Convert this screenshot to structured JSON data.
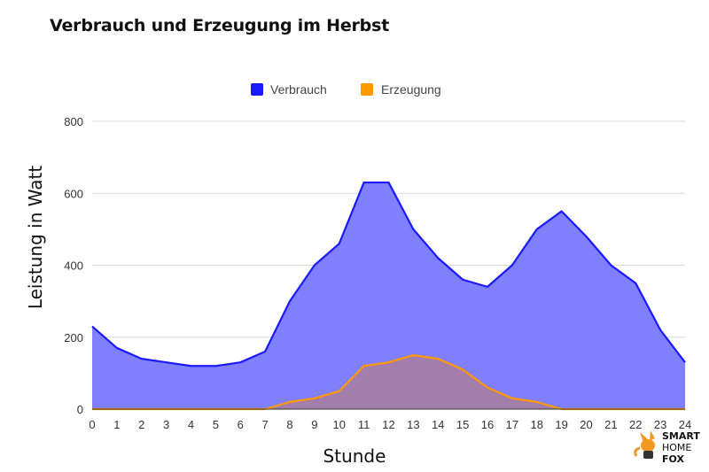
{
  "chart_data": {
    "type": "area",
    "title": "Verbrauch und Erzeugung im Herbst",
    "xlabel": "Stunde",
    "ylabel": "Leistung in Watt",
    "x": [
      0,
      1,
      2,
      3,
      4,
      5,
      6,
      7,
      8,
      9,
      10,
      11,
      12,
      13,
      14,
      15,
      16,
      17,
      18,
      19,
      20,
      21,
      22,
      23,
      24
    ],
    "ylim": [
      0,
      800
    ],
    "yticks": [
      0,
      200,
      400,
      600,
      800
    ],
    "grid": true,
    "legend_position": "top-center",
    "series": [
      {
        "name": "Verbrauch",
        "color": "#1a1aff",
        "fill": "#8080ff",
        "values": [
          230,
          170,
          140,
          130,
          120,
          120,
          130,
          160,
          300,
          400,
          460,
          630,
          630,
          500,
          420,
          360,
          340,
          400,
          500,
          550,
          480,
          400,
          350,
          220,
          130
        ]
      },
      {
        "name": "Erzeugung",
        "color": "#ff9900",
        "fill": "#a37dab",
        "values": [
          0,
          0,
          0,
          0,
          0,
          0,
          0,
          0,
          20,
          30,
          50,
          120,
          130,
          150,
          140,
          110,
          60,
          30,
          20,
          0,
          0,
          0,
          0,
          0,
          0
        ]
      }
    ]
  },
  "logo": {
    "line1": "SMART",
    "line2": "HOME",
    "line3": "FOX"
  }
}
